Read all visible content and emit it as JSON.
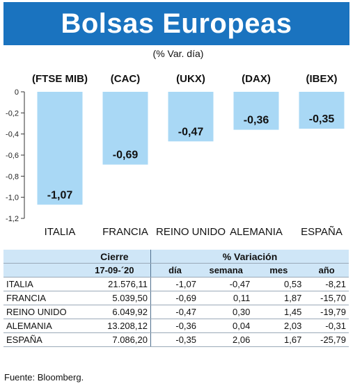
{
  "title": "Bolsas Europeas",
  "subtitle": "(% Var. día)",
  "chart_data": {
    "type": "bar",
    "categories": [
      "ITALIA",
      "FRANCIA",
      "REINO UNIDO",
      "ALEMANIA",
      "ESPAÑA"
    ],
    "index_labels": [
      "(FTSE MIB)",
      "(CAC)",
      "(UKX)",
      "(DAX)",
      "(IBEX)"
    ],
    "values": [
      -1.07,
      -0.69,
      -0.47,
      -0.36,
      -0.35
    ],
    "value_labels": [
      "-1,07",
      "-0,69",
      "-0,47",
      "-0,36",
      "-0,35"
    ],
    "ylim": [
      -1.2,
      0
    ],
    "yticks": [
      0,
      -0.2,
      -0.4,
      -0.6,
      -0.8,
      -1.0,
      -1.2
    ],
    "ytick_labels": [
      "0",
      "-0,2",
      "-0,4",
      "-0,6",
      "-0,8",
      "-1,0",
      "-1,2"
    ],
    "bar_color": "#a9d8f5",
    "grid": false
  },
  "table": {
    "cierre_label": "Cierre",
    "variacion_label": "% Variación",
    "date": "17-09-´20",
    "columns": [
      "día",
      "semana",
      "mes",
      "año"
    ],
    "rows": [
      [
        "ITALIA",
        "21.576,11",
        "-1,07",
        "-0,47",
        "0,53",
        "-8,21"
      ],
      [
        "FRANCIA",
        "5.039,50",
        "-0,69",
        "0,11",
        "1,87",
        "-15,70"
      ],
      [
        "REINO UNIDO",
        "6.049,92",
        "-0,47",
        "0,30",
        "1,45",
        "-19,79"
      ],
      [
        "ALEMANIA",
        "13.208,12",
        "-0,36",
        "0,04",
        "2,03",
        "-0,31"
      ],
      [
        "ESPAÑA",
        "7.086,20",
        "-0,35",
        "2,06",
        "1,67",
        "-25,79"
      ]
    ],
    "header_color": "#cfe6f7"
  },
  "source": "Fuente: Bloomberg.",
  "colors": {
    "banner": "#1a73bf",
    "bar": "#a9d8f5"
  }
}
